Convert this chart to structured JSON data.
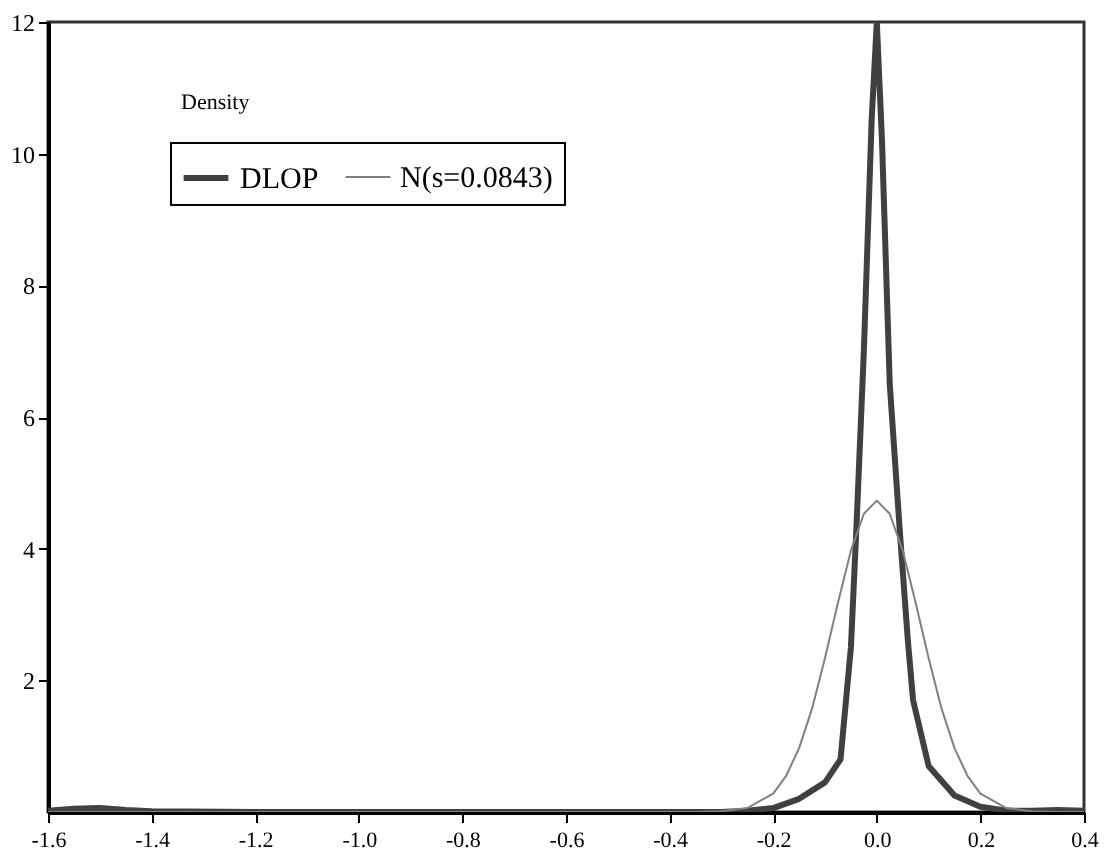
{
  "chart_data": {
    "type": "line",
    "ylabel": "Density",
    "xlim": [
      -1.6,
      0.4
    ],
    "xticks": [
      -1.6,
      -1.4,
      -1.2,
      {
        "value": -1,
        "label": "-1.0"
      },
      -0.8,
      -0.6,
      -0.4,
      -0.2,
      {
        "value": 0,
        "label": "0.0"
      },
      0.2,
      0.4
    ],
    "ylim": [
      0,
      12
    ],
    "yticks": [
      2,
      4,
      6,
      8,
      10,
      12
    ],
    "grid": false,
    "legend": "top left",
    "series": [
      {
        "name": "DLOP",
        "color": "#404040",
        "x": [
          -1.6,
          -1.55,
          -1.5,
          -1.45,
          -1.4,
          -1.2,
          -1.0,
          -0.8,
          -0.6,
          -0.4,
          -0.3,
          -0.25,
          -0.2,
          -0.15,
          -0.1,
          -0.07,
          -0.05,
          -0.04,
          -0.025,
          -0.01,
          0,
          0.01,
          0.025,
          0.045,
          0.06,
          0.07,
          0.1,
          0.15,
          0.2,
          0.25,
          0.3,
          0.35,
          0.4
        ],
        "values": [
          0.02,
          0.05,
          0.06,
          0.03,
          0.01,
          0,
          0,
          0,
          0,
          0,
          0,
          0.02,
          0.06,
          0.2,
          0.45,
          0.8,
          2.5,
          4.2,
          7,
          10.5,
          12,
          10.2,
          6.5,
          4.2,
          2.6,
          1.7,
          0.7,
          0.25,
          0.08,
          0.02,
          0.02,
          0.03,
          0.02
        ]
      },
      {
        "name": "N(s=0.0843)",
        "color": "#808080",
        "x": [
          -1.6,
          -0.35,
          -0.3,
          -0.25,
          -0.2,
          -0.175,
          -0.15,
          -0.125,
          -0.1,
          -0.075,
          -0.05,
          -0.025,
          0,
          0.025,
          0.05,
          0.075,
          0.1,
          0.125,
          0.15,
          0.175,
          0.2,
          0.25,
          0.3,
          0.35,
          0.4
        ],
        "values": [
          0,
          0,
          0.01,
          0.06,
          0.28,
          0.55,
          0.97,
          1.57,
          2.34,
          3.18,
          3.97,
          4.53,
          4.73,
          4.53,
          3.97,
          3.18,
          2.34,
          1.57,
          0.97,
          0.55,
          0.28,
          0.06,
          0.01,
          0,
          0
        ]
      }
    ]
  }
}
